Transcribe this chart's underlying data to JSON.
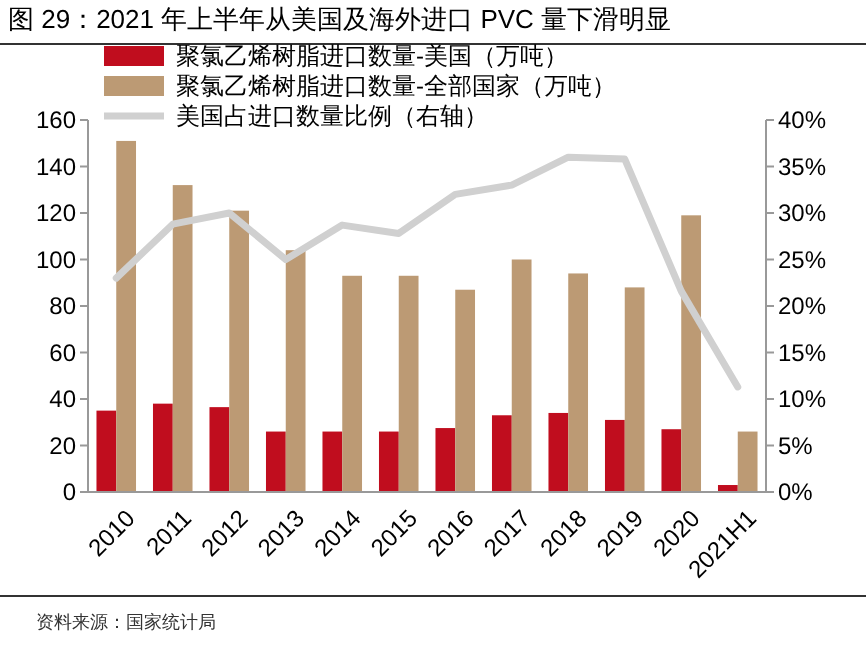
{
  "chart_data": {
    "type": "bar",
    "title": "图 29：2021 年上半年从美国及海外进口 PVC 量下滑明显",
    "categories": [
      "2010",
      "2011",
      "2012",
      "2013",
      "2014",
      "2015",
      "2016",
      "2017",
      "2018",
      "2019",
      "2020",
      "2021H1"
    ],
    "series": [
      {
        "name": "聚氯乙烯树脂进口数量-美国（万吨）",
        "color": "#c00d1e",
        "values": [
          35,
          38,
          36.5,
          26,
          26,
          26,
          27.5,
          33,
          34,
          31,
          27,
          3
        ]
      },
      {
        "name": "聚氯乙烯树脂进口数量-全部国家（万吨）",
        "color": "#bc9a74",
        "values": [
          151,
          132,
          121,
          104,
          93,
          93,
          87,
          100,
          94,
          88,
          119,
          26
        ]
      },
      {
        "name": "美国占进口数量比例（右轴）",
        "type": "line",
        "axis": "y2",
        "color": "#d0d0d0",
        "values": [
          23,
          28.8,
          30,
          25,
          28.7,
          27.8,
          32,
          33,
          36,
          35.8,
          21.6,
          11.3
        ]
      }
    ],
    "ylim": [
      0,
      160
    ],
    "yticks": [
      0,
      20,
      40,
      60,
      80,
      100,
      120,
      140,
      160
    ],
    "y2lim": [
      0,
      40
    ],
    "y2ticks": [
      {
        "value": 0,
        "label": "0%"
      },
      {
        "value": 5,
        "label": "5%"
      },
      {
        "value": 10,
        "label": "10%"
      },
      {
        "value": 15,
        "label": "15%"
      },
      {
        "value": 20,
        "label": "20%"
      },
      {
        "value": 25,
        "label": "25%"
      },
      {
        "value": 30,
        "label": "30%"
      },
      {
        "value": 35,
        "label": "35%"
      },
      {
        "value": 40,
        "label": "40%"
      }
    ],
    "legend": "top left",
    "grid": false,
    "annotations": [
      "资料来源：国家统计局"
    ]
  }
}
